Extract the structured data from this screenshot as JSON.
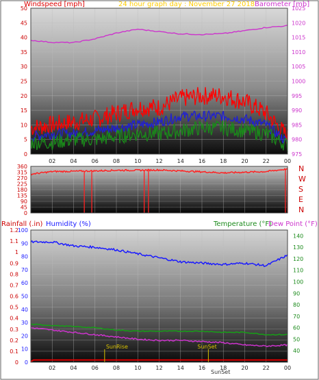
{
  "colors": {
    "wind": "#ff0000",
    "gust_mid": "#1f1fd6",
    "gust_low": "#1a8a1a",
    "barometer": "#cc33cc",
    "title": "#ffcc00",
    "direction": "#ff2222",
    "humidity": "#1a1aff",
    "temperature": "#16a016",
    "dewpoint": "#cc33cc",
    "rain": "#dd0000",
    "sun": "#d9c200"
  },
  "chart_data": [
    {
      "type": "line",
      "title": "24 hour graph day : November 27 2018",
      "left_label": "Windspeed [mph]",
      "right_label": "Barometer [mb]",
      "x_ticks": [
        "02",
        "04",
        "06",
        "08",
        "10",
        "12",
        "14",
        "16",
        "18",
        "20",
        "22",
        "00"
      ],
      "y_left_ticks": [
        "0",
        "5",
        "10",
        "15",
        "20",
        "25",
        "30",
        "35",
        "40",
        "45",
        "50"
      ],
      "y_right_ticks": [
        "975",
        "980",
        "985",
        "990",
        "995",
        "1000",
        "1005",
        "1010",
        "1015",
        "1020",
        "1025"
      ],
      "y_left_range": [
        0,
        50
      ],
      "y_right_range": [
        975,
        1025
      ],
      "hours": [
        0,
        2,
        4,
        6,
        8,
        10,
        12,
        14,
        16,
        18,
        20,
        22,
        24
      ],
      "series": [
        {
          "key": "wind_max",
          "axis": "left",
          "values": [
            9,
            10,
            11,
            12,
            14,
            16,
            16,
            19,
            20,
            20,
            18,
            14,
            6
          ]
        },
        {
          "key": "wind_avg",
          "axis": "left",
          "values": [
            6,
            7,
            7,
            8,
            9,
            10,
            11,
            13,
            13,
            13,
            12,
            10,
            4
          ]
        },
        {
          "key": "wind_min",
          "axis": "left",
          "values": [
            4,
            4,
            5,
            5,
            6,
            7,
            7,
            8,
            9,
            9,
            8,
            7,
            3
          ]
        },
        {
          "key": "barometer",
          "axis": "right",
          "values": [
            1014,
            1013.3,
            1013.2,
            1014.5,
            1016.5,
            1017.8,
            1017,
            1016.2,
            1016,
            1016.3,
            1017.3,
            1018.4,
            1019
          ]
        }
      ]
    },
    {
      "type": "line",
      "y_ticks": [
        "0",
        "45",
        "90",
        "135",
        "180",
        "225",
        "270",
        "315",
        "360"
      ],
      "y_range": [
        0,
        360
      ],
      "direction_labels": [
        "N",
        "W",
        "S",
        "E",
        "N"
      ],
      "hours": [
        0,
        2,
        4,
        6,
        8,
        10,
        12,
        14,
        16,
        18,
        20,
        22,
        24
      ],
      "series": [
        {
          "key": "wind_direction",
          "values": [
            300,
            320,
            322,
            325,
            330,
            330,
            332,
            325,
            318,
            310,
            315,
            320,
            340
          ]
        }
      ],
      "drops_to_zero_at_hours": [
        5,
        5.7,
        10.6,
        11,
        23.8,
        24
      ]
    },
    {
      "type": "line",
      "left_labels": [
        "Rainfall (.in)",
        "Humidity (%)"
      ],
      "right_labels": [
        "Temperature (°F)",
        "Dew Point (°F)"
      ],
      "x_ticks": [
        "02",
        "04",
        "06",
        "08",
        "10",
        "12",
        "14",
        "16",
        "18",
        "20",
        "22",
        "00"
      ],
      "rain_ticks": [
        "0",
        "0.1",
        "0.2",
        "0.3",
        "0.4",
        "0.5",
        "0.6",
        "0.7",
        "0.8",
        "0.9",
        "1",
        "1.1",
        "1.2"
      ],
      "humidity_ticks": [
        "0",
        "10",
        "20",
        "30",
        "40",
        "50",
        "60",
        "70",
        "80",
        "90",
        "100"
      ],
      "temp_ticks": [
        "40",
        "50",
        "60",
        "70",
        "80",
        "90",
        "100",
        "110",
        "120",
        "130",
        "140"
      ],
      "rain_range": [
        0,
        1.2
      ],
      "humidity_range": [
        0,
        100
      ],
      "temp_range": [
        30,
        145
      ],
      "hours": [
        0,
        2,
        4,
        6,
        8,
        10,
        12,
        14,
        16,
        18,
        20,
        22,
        24
      ],
      "series": [
        {
          "key": "humidity",
          "axis": "humidity",
          "values": [
            91,
            91,
            88,
            87,
            85,
            82,
            79,
            76,
            75,
            74,
            75,
            73,
            81
          ]
        },
        {
          "key": "temperature",
          "axis": "temp",
          "values": [
            63,
            62,
            61,
            60,
            58,
            57,
            57,
            57,
            57,
            56,
            56,
            54,
            54
          ]
        },
        {
          "key": "dewpoint",
          "axis": "temp",
          "values": [
            60,
            58,
            56,
            54,
            52,
            50,
            49,
            49,
            48,
            47,
            45,
            44,
            45
          ]
        },
        {
          "key": "rain",
          "axis": "rain",
          "values": [
            0.02,
            0.02,
            0.02,
            0.02,
            0.02,
            0.02,
            0.02,
            0.02,
            0.02,
            0.02,
            0.02,
            0.02,
            0.02
          ]
        }
      ],
      "sunrise_label": "SunRise",
      "sunset_label": "SunSet",
      "sunrise_hour": 6.9,
      "sunset_hour": 16.6,
      "footer_label": "SunSet"
    }
  ]
}
